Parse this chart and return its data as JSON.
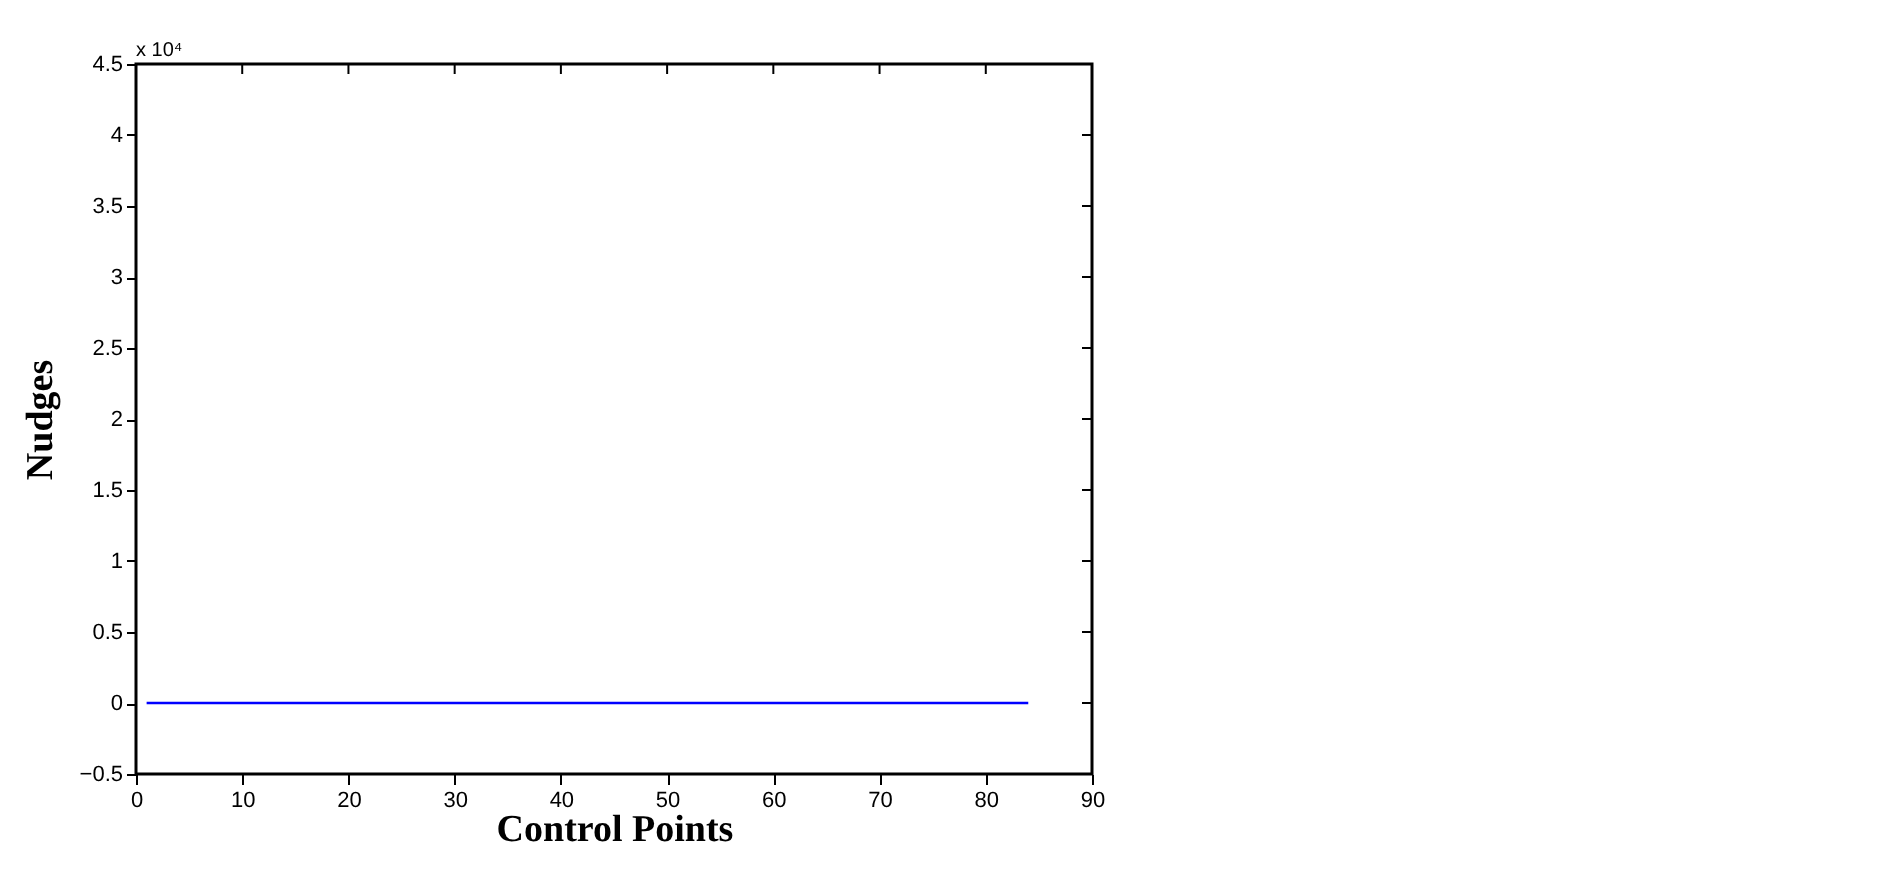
{
  "chart_data": {
    "type": "line",
    "xlabel": "Control Points",
    "ylabel": "Nudges",
    "x": [
      1,
      84
    ],
    "series": [
      {
        "color": "#0000ff",
        "values": [
          0,
          0
        ]
      }
    ],
    "xlim": [
      0,
      90
    ],
    "xticks": [
      0,
      10,
      20,
      30,
      40,
      50,
      60,
      70,
      80,
      90
    ],
    "ylim": [
      -0.5,
      4.5
    ],
    "yticks": [
      {
        "value": -0.5,
        "label": "−0.5"
      },
      0,
      0.5,
      1,
      1.5,
      2,
      2.5,
      3,
      3.5,
      4,
      4.5
    ],
    "annotations": [
      "x 10⁴"
    ],
    "grid": false,
    "marker": "none",
    "line_style": "solid"
  }
}
